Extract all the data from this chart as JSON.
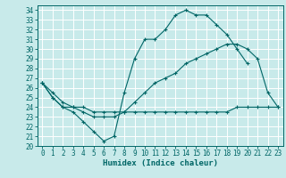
{
  "xlabel": "Humidex (Indice chaleur)",
  "bg_color": "#c8eaea",
  "grid_color": "#ffffff",
  "line_color": "#006666",
  "xlim": [
    -0.5,
    23.5
  ],
  "ylim": [
    20,
    34.5
  ],
  "xticks": [
    0,
    1,
    2,
    3,
    4,
    5,
    6,
    7,
    8,
    9,
    10,
    11,
    12,
    13,
    14,
    15,
    16,
    17,
    18,
    19,
    20,
    21,
    22,
    23
  ],
  "yticks": [
    20,
    21,
    22,
    23,
    24,
    25,
    26,
    27,
    28,
    29,
    30,
    31,
    32,
    33,
    34
  ],
  "line1_y": [
    26.5,
    25.0,
    24.0,
    23.5,
    22.5,
    21.5,
    20.5,
    21.0,
    25.5,
    29.0,
    31.0,
    31.0,
    32.0,
    33.5,
    34.0,
    33.5,
    33.5,
    32.5,
    31.5,
    30.0,
    28.5,
    null,
    null,
    null
  ],
  "line2_y": [
    26.5,
    25.0,
    24.0,
    24.0,
    24.0,
    23.5,
    23.5,
    23.5,
    23.5,
    23.5,
    23.5,
    23.5,
    23.5,
    23.5,
    23.5,
    23.5,
    23.5,
    23.5,
    23.5,
    24.0,
    24.0,
    24.0,
    24.0,
    24.0
  ],
  "line3_y": [
    26.5,
    25.5,
    24.5,
    24.0,
    23.5,
    23.0,
    23.0,
    23.0,
    23.5,
    24.5,
    25.5,
    26.5,
    27.0,
    27.5,
    28.5,
    29.0,
    29.5,
    30.0,
    30.5,
    30.5,
    30.0,
    29.0,
    25.5,
    24.0
  ],
  "tick_fontsize": 5.5,
  "xlabel_fontsize": 6.5
}
